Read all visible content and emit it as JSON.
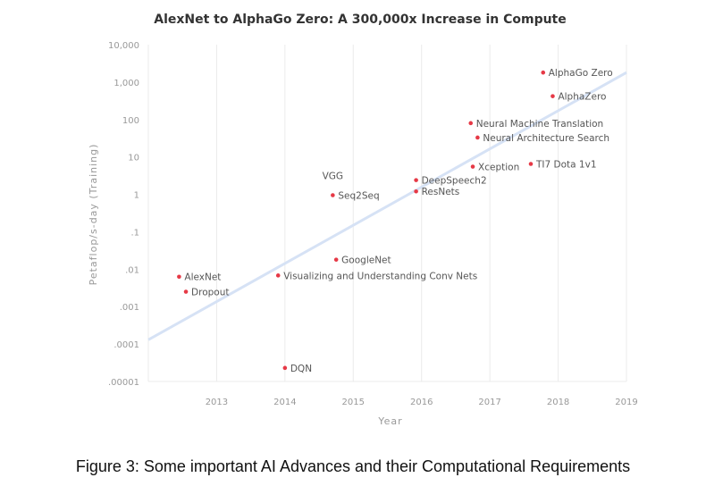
{
  "chart_data": {
    "type": "scatter",
    "title": "AlexNet to AlphaGo Zero: A 300,000x Increase in Compute",
    "xlabel": "Year",
    "ylabel": "Petaflop/s-day (Training)",
    "y_scale": "log",
    "xlim": [
      2012.0,
      2019.0
    ],
    "ylim": [
      1e-05,
      10000
    ],
    "x_ticks": [
      "2013",
      "2014",
      "2015",
      "2016",
      "2017",
      "2018",
      "2019"
    ],
    "y_ticks": [
      "10,000",
      "1,000",
      "100",
      "10",
      "1",
      ".1",
      ".01",
      ".001",
      ".0001",
      ".00001"
    ],
    "y_tick_values": [
      10000,
      1000,
      100,
      10,
      1,
      0.1,
      0.01,
      0.001,
      0.0001,
      1e-05
    ],
    "grid": "vertical",
    "points": [
      {
        "name": "AlexNet",
        "x": 2012.45,
        "y": 0.0063
      },
      {
        "name": "Dropout",
        "x": 2012.55,
        "y": 0.0025
      },
      {
        "name": "DQN",
        "x": 2014.0,
        "y": 2.3e-05
      },
      {
        "name": "Visualizing and Understanding Conv Nets",
        "x": 2013.9,
        "y": 0.0068
      },
      {
        "name": "GoogleNet",
        "x": 2014.75,
        "y": 0.018
      },
      {
        "name": "Seq2Seq",
        "x": 2014.7,
        "y": 0.95
      },
      {
        "name": "VGG",
        "x": 2014.7,
        "y": 0.95
      },
      {
        "name": "DeepSpeech2",
        "x": 2015.92,
        "y": 2.4
      },
      {
        "name": "ResNets",
        "x": 2015.92,
        "y": 1.2
      },
      {
        "name": "Xception",
        "x": 2016.75,
        "y": 5.5
      },
      {
        "name": "TI7 Dota 1v1",
        "x": 2017.6,
        "y": 6.5
      },
      {
        "name": "Neural Architecture Search",
        "x": 2016.82,
        "y": 33
      },
      {
        "name": "Neural Machine Translation",
        "x": 2016.72,
        "y": 80
      },
      {
        "name": "AlphaZero",
        "x": 2017.92,
        "y": 420
      },
      {
        "name": "AlphaGo Zero",
        "x": 2017.78,
        "y": 1800
      }
    ],
    "trend_line": {
      "from": {
        "x": 2012.0,
        "y": 0.00013
      },
      "to": {
        "x": 2019.0,
        "y": 1800
      }
    },
    "colors": {
      "point": "#e63946",
      "trend": "#d6e2f5",
      "grid": "#ebebeb",
      "text": "#555555"
    }
  },
  "caption": "Figure 3: Some important AI Advances and their Computational Requirements"
}
